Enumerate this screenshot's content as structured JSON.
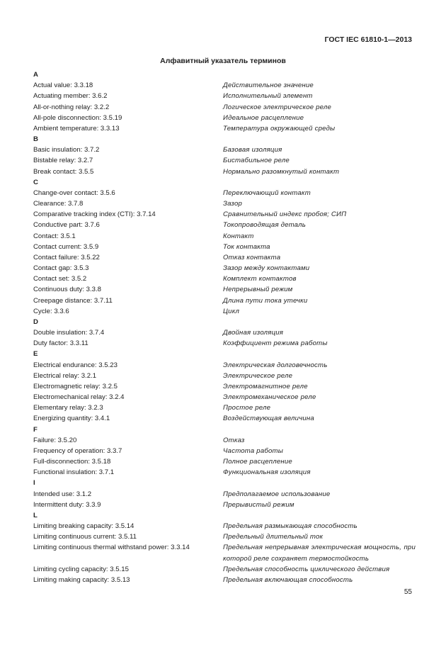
{
  "header": "ГОСТ IEC 61810-1—2013",
  "title": "Алфавитный указатель терминов",
  "sections": [
    {
      "letter": "A",
      "items": [
        {
          "en": "Actual value: 3.3.18",
          "ru": "Действительное значение"
        },
        {
          "en": "Actuating member: 3.6.2",
          "ru": "Исполнительный элемент"
        },
        {
          "en": "All-or-nothing relay: 3.2.2",
          "ru": "Логическое электрическое реле"
        },
        {
          "en": "All-pole disconnection: 3.5.19",
          "ru": "Идеальное расцепление"
        },
        {
          "en": "Ambient temperature: 3.3.13",
          "ru": "Температура окружающей среды"
        }
      ]
    },
    {
      "letter": "B",
      "items": [
        {
          "en": "Basic insulation: 3.7.2",
          "ru": "Базовая изоляция"
        },
        {
          "en": "Bistable relay: 3.2.7",
          "ru": "Бистабильное реле"
        },
        {
          "en": "Break contact: 3.5.5",
          "ru": "Нормально разомкнутый контакт"
        }
      ]
    },
    {
      "letter": "C",
      "items": [
        {
          "en": "Change-over contact: 3.5.6",
          "ru": "Переключающий контакт"
        },
        {
          "en": "Clearance: 3.7.8",
          "ru": "Зазор"
        },
        {
          "en": "Comparative tracking index (CTI): 3.7.14",
          "ru": "Сравнительный индекс пробоя; СИП"
        },
        {
          "en": "Conductive part: 3.7.6",
          "ru": "Токопроводящая деталь"
        },
        {
          "en": "Contact: 3.5.1",
          "ru": "Контакт"
        },
        {
          "en": "Contact current: 3.5.9",
          "ru": "Ток контакта"
        },
        {
          "en": "Contact failure: 3.5.22",
          "ru": "Отказ контакта"
        },
        {
          "en": "Contact gap: 3.5.3",
          "ru": "Зазор между контактами"
        },
        {
          "en": "Contact set: 3.5.2",
          "ru": "Комплект контактов"
        },
        {
          "en": "Continuous duty: 3.3.8",
          "ru": "Непрерывный режим"
        },
        {
          "en": "Creepage distance: 3.7.11",
          "ru": "Длина пути тока утечки"
        },
        {
          "en": "Cycle: 3.3.6",
          "ru": "Цикл"
        }
      ]
    },
    {
      "letter": "D",
      "items": [
        {
          "en": "Double insulation: 3.7.4",
          "ru": "Двойная изоляция"
        },
        {
          "en": "Duty factor: 3.3.11",
          "ru": "Коэффициент режима работы"
        }
      ]
    },
    {
      "letter": "E",
      "items": [
        {
          "en": "Electrical endurance: 3.5.23",
          "ru": "Электрическая долговечность"
        },
        {
          "en": "Electrical relay: 3.2.1",
          "ru": "Электрическое реле"
        },
        {
          "en": "Electromagnetic relay: 3.2.5",
          "ru": "Электромагнитное реле"
        },
        {
          "en": "Electromechanical relay: 3.2.4",
          "ru": "Электромеханическое реле"
        },
        {
          "en": "Elementary relay: 3.2.3",
          "ru": "Простое реле"
        },
        {
          "en": "Energizing quantity: 3.4.1",
          "ru": "Воздействующая величина"
        }
      ]
    },
    {
      "letter": "F",
      "items": [
        {
          "en": "Failure: 3.5.20",
          "ru": "Отказ"
        },
        {
          "en": "Frequency of operation: 3.3.7",
          "ru": "Частота работы"
        },
        {
          "en": "Full-disconnection: 3.5.18",
          "ru": "Полное расцепление"
        },
        {
          "en": "Functional insulation: 3.7.1",
          "ru": "Функциональная изоляция"
        }
      ]
    },
    {
      "letter": "I",
      "items": [
        {
          "en": "Intended use: 3.1.2",
          "ru": "Предполагаемое использование"
        },
        {
          "en": "Intermittent duty: 3.3.9",
          "ru": "Прерывистый режим"
        }
      ]
    },
    {
      "letter": "L",
      "items": [
        {
          "en": "Limiting breaking capacity: 3.5.14",
          "ru": "Предельная размыкающая способность"
        },
        {
          "en": "Limiting continuous current: 3.5.11",
          "ru": "Предельный длительный ток"
        },
        {
          "en": "Limiting continuous thermal withstand power: 3.3.14",
          "ru": "Предельная непрерывная электрическая мощность, при которой реле сохраняет термостойкость"
        },
        {
          "en": "Limiting cycling capacity: 3.5.15",
          "ru": "Предельная способность циклического действия"
        },
        {
          "en": "Limiting making capacity: 3.5.13",
          "ru": "Предельная включающая способность"
        }
      ]
    }
  ],
  "page_number": "55"
}
